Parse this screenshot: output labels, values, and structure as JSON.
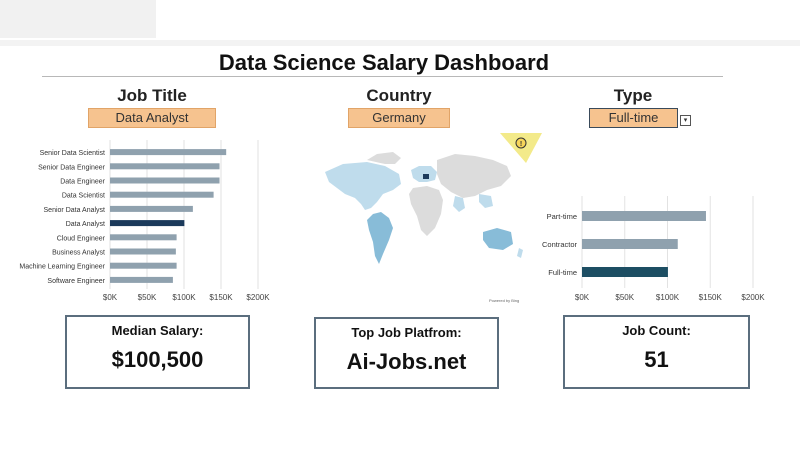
{
  "dashboard": {
    "title": "Data Science Salary Dashboard"
  },
  "slicers": [
    {
      "label": "Job Title",
      "value": "Data Analyst"
    },
    {
      "label": "Country",
      "value": "Germany"
    },
    {
      "label": "Type",
      "value": "Full-time"
    }
  ],
  "colors": {
    "bar_default": "#8fa1ae",
    "bar_selected": "#1b3a5b",
    "bar_selected_type": "#1d4e63",
    "slicer_fill": "#f6c38f",
    "map_light": "#bfdcec",
    "map_mid": "#88bcd8",
    "map_selected": "#1b3a5b",
    "map_gray": "#dcdcdc"
  },
  "map": {
    "credit": "Powered by Bing",
    "warning_icon": "warning-icon"
  },
  "chart_data": [
    {
      "type": "bar",
      "orientation": "horizontal",
      "categories": [
        "Senior Data Scientist",
        "Senior Data Engineer",
        "Data Engineer",
        "Data Scientist",
        "Senior Data Analyst",
        "Data Analyst",
        "Cloud Engineer",
        "Business Analyst",
        "Machine Learning Engineer",
        "Software Engineer"
      ],
      "values": [
        157000,
        148000,
        148000,
        140000,
        112000,
        100500,
        90000,
        89000,
        90000,
        85000
      ],
      "highlight": "Data Analyst",
      "xlim": [
        0,
        200000
      ],
      "xticks": [
        "$0K",
        "$50K",
        "$100K",
        "$150K",
        "$200K"
      ],
      "grid": true
    },
    {
      "type": "bar",
      "orientation": "horizontal",
      "categories": [
        "Part-time",
        "Contractor",
        "Full-time"
      ],
      "values": [
        145000,
        112000,
        100500
      ],
      "highlight": "Full-time",
      "xlim": [
        0,
        200000
      ],
      "xticks": [
        "$0K",
        "$50K",
        "$100K",
        "$150K",
        "$200K"
      ],
      "grid": true
    }
  ],
  "kpis": [
    {
      "label": "Median Salary:",
      "value": "$100,500"
    },
    {
      "label": "Top Job Platfrom:",
      "value": "Ai-Jobs.net"
    },
    {
      "label": "Job Count:",
      "value": "51"
    }
  ]
}
